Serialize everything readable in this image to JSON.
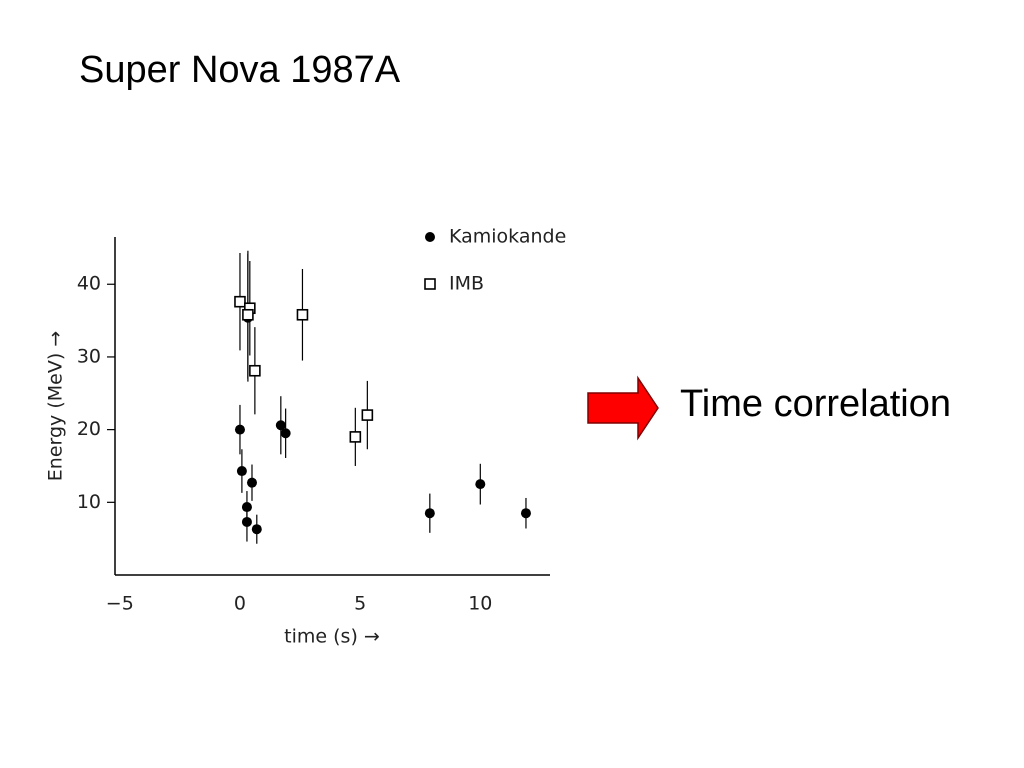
{
  "title": "Super Nova 1987A",
  "annotation": "Time correlation",
  "chart_data": {
    "type": "scatter",
    "x_label": "time (s) →",
    "y_label": "Energy (MeV) →",
    "xlim": [
      -5.2,
      12.9
    ],
    "ylim": [
      0,
      46.5
    ],
    "xticks": [
      {
        "value": -5,
        "label": "−5"
      },
      0,
      5,
      10
    ],
    "yticks": [
      10,
      20,
      30,
      40
    ],
    "grid": false,
    "legend": "top right",
    "series": [
      {
        "name": "Kamiokande",
        "marker": "filled circle",
        "color": "#000000",
        "x": [
          0,
          0.08,
          0.5,
          0.29,
          0.29,
          0.7,
          0.33,
          1.7,
          1.9,
          7.9,
          10.0,
          11.9
        ],
        "values": [
          20,
          14.3,
          12.7,
          9.35,
          7.3,
          6.3,
          35.4,
          20.6,
          19.5,
          8.5,
          12.5,
          8.5
        ],
        "errors": [
          3.4,
          3,
          2.5,
          2.2,
          2.7,
          2,
          8.8,
          4,
          3.4,
          2.7,
          2.8,
          2.1
        ]
      },
      {
        "name": "IMB",
        "marker": "open square",
        "color": "#000000",
        "x": [
          0,
          0.41,
          0.62,
          0.33,
          2.6,
          4.8,
          5.3
        ],
        "values": [
          37.6,
          36.7,
          28.1,
          35.8,
          35.8,
          19.0,
          22.0
        ],
        "errors": [
          6.7,
          6.5,
          6,
          8.8,
          6.3,
          4,
          4.7
        ]
      }
    ]
  }
}
